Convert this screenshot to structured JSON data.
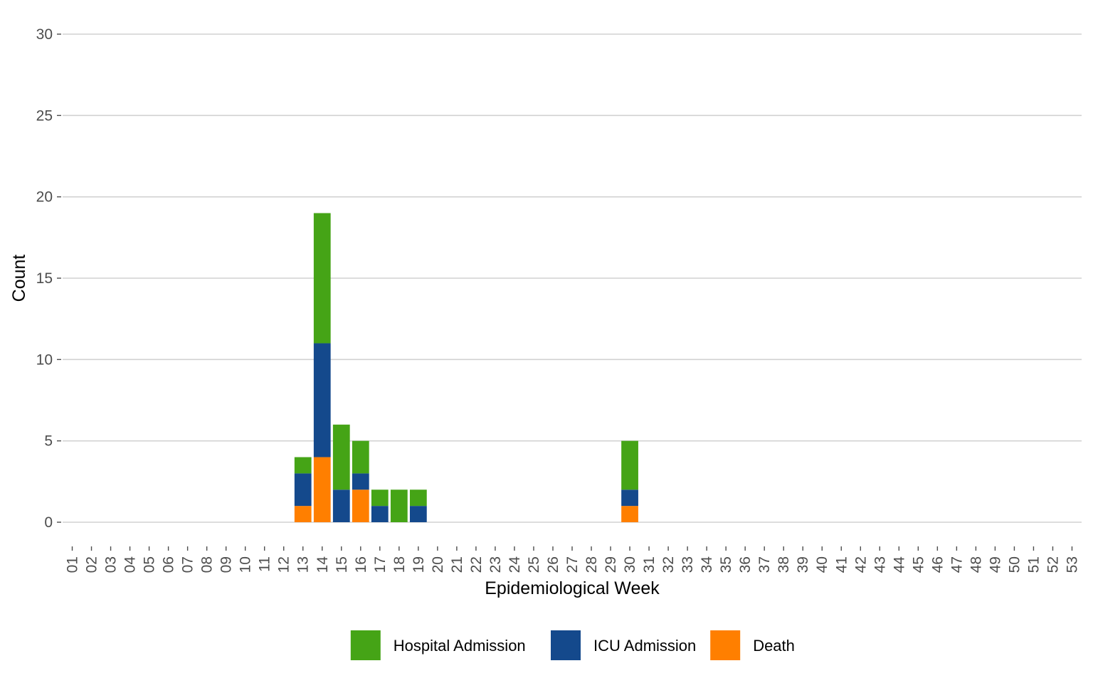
{
  "chart_data": {
    "type": "bar",
    "stacked": true,
    "title": "",
    "xlabel": "Epidemiological Week",
    "ylabel": "Count",
    "ylim": [
      0,
      30
    ],
    "yticks": [
      0,
      5,
      10,
      15,
      20,
      25,
      30
    ],
    "grid": "horizontal",
    "legend_position": "bottom",
    "categories": [
      "01",
      "02",
      "03",
      "04",
      "05",
      "06",
      "07",
      "08",
      "09",
      "10",
      "11",
      "12",
      "13",
      "14",
      "15",
      "16",
      "17",
      "18",
      "19",
      "20",
      "21",
      "22",
      "23",
      "24",
      "25",
      "26",
      "27",
      "28",
      "29",
      "30",
      "31",
      "32",
      "33",
      "34",
      "35",
      "36",
      "37",
      "38",
      "39",
      "40",
      "41",
      "42",
      "43",
      "44",
      "45",
      "46",
      "47",
      "48",
      "49",
      "50",
      "51",
      "52",
      "53"
    ],
    "series": [
      {
        "name": "Death",
        "color": "#ff7f00",
        "values": [
          0,
          0,
          0,
          0,
          0,
          0,
          0,
          0,
          0,
          0,
          0,
          0,
          1,
          4,
          0,
          2,
          0,
          0,
          0,
          0,
          0,
          0,
          0,
          0,
          0,
          0,
          0,
          0,
          0,
          1,
          0,
          0,
          0,
          0,
          0,
          0,
          0,
          0,
          0,
          0,
          0,
          0,
          0,
          0,
          0,
          0,
          0,
          0,
          0,
          0,
          0,
          0,
          0
        ]
      },
      {
        "name": "ICU Admission",
        "color": "#14498c",
        "values": [
          0,
          0,
          0,
          0,
          0,
          0,
          0,
          0,
          0,
          0,
          0,
          0,
          2,
          7,
          2,
          1,
          1,
          0,
          1,
          0,
          0,
          0,
          0,
          0,
          0,
          0,
          0,
          0,
          0,
          1,
          0,
          0,
          0,
          0,
          0,
          0,
          0,
          0,
          0,
          0,
          0,
          0,
          0,
          0,
          0,
          0,
          0,
          0,
          0,
          0,
          0,
          0,
          0
        ]
      },
      {
        "name": "Hospital Admission",
        "color": "#45a416",
        "values": [
          0,
          0,
          0,
          0,
          0,
          0,
          0,
          0,
          0,
          0,
          0,
          0,
          1,
          8,
          4,
          2,
          1,
          2,
          1,
          0,
          0,
          0,
          0,
          0,
          0,
          0,
          0,
          0,
          0,
          3,
          0,
          0,
          0,
          0,
          0,
          0,
          0,
          0,
          0,
          0,
          0,
          0,
          0,
          0,
          0,
          0,
          0,
          0,
          0,
          0,
          0,
          0,
          0
        ]
      }
    ],
    "legend_order": [
      "Hospital Admission",
      "ICU Admission",
      "Death"
    ]
  }
}
